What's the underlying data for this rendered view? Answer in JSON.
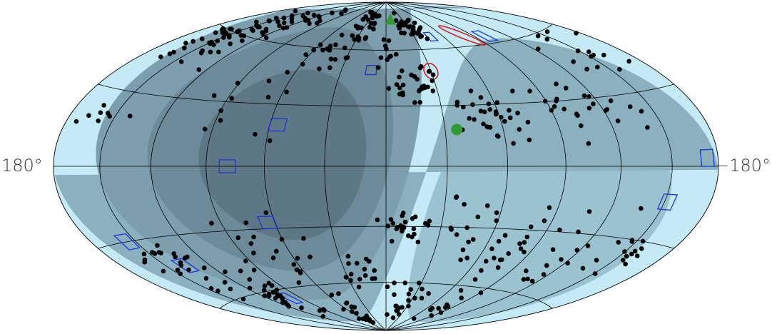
{
  "map": {
    "projection": "hammer-aitoff",
    "coordinate_system": "galactic",
    "lon_label_left": "180°",
    "lon_label_right": "−180°",
    "colors": {
      "background_light": "#c4eaf6",
      "background_dark": "#5e7784",
      "graticule": "#000000",
      "points": "#000000",
      "markers_green": "#2f9a2f",
      "contours_red": "#d42020",
      "regions_blue": "#1a35e0"
    },
    "shading_layers": [
      {
        "lon": 118,
        "lat": 25,
        "radius": 150,
        "color": "#b6dde9"
      },
      {
        "lon": 105,
        "lat": 22,
        "radius": 135,
        "color": "#a9d1de"
      },
      {
        "lon": 92,
        "lat": 20,
        "radius": 118,
        "color": "#9bc2cf"
      },
      {
        "lon": 80,
        "lat": 18,
        "radius": 100,
        "color": "#8cb1be"
      },
      {
        "lon": 70,
        "lat": 14,
        "radius": 82,
        "color": "#7c9ead"
      },
      {
        "lon": 60,
        "lat": 10,
        "radius": 62,
        "color": "#6c8a98"
      },
      {
        "lon": 52,
        "lat": 6,
        "radius": 42,
        "color": "#5e7784"
      }
    ],
    "green_markers": [
      {
        "shape": "triangle",
        "lon": -8,
        "lat": 78
      },
      {
        "shape": "circle",
        "lon": -36,
        "lat": 18
      }
    ],
    "red_contours": [
      {
        "lon": -30,
        "lat": 48,
        "width_deg": 4,
        "height_deg": 10,
        "angle": -35
      },
      {
        "lon": -80,
        "lat": 66,
        "width_deg": 16,
        "height_deg": 3,
        "angle": 22
      }
    ],
    "blue_regions": [
      {
        "lon": 10,
        "lat": 49,
        "size": 5
      },
      {
        "lon": -47,
        "lat": 67,
        "size": 5
      },
      {
        "lon": -100,
        "lat": 64,
        "size": 6
      },
      {
        "lon": 56,
        "lat": 20,
        "size": 6
      },
      {
        "lon": 79,
        "lat": 0,
        "size": 6
      },
      {
        "lon": 64,
        "lat": -27,
        "size": 6
      },
      {
        "lon": 156,
        "lat": -30,
        "size": 6
      },
      {
        "lon": 137,
        "lat": -43,
        "size": 6
      },
      {
        "lon": 101,
        "lat": -65,
        "size": 6
      },
      {
        "lon": -173,
        "lat": 3,
        "size": 6
      },
      {
        "lon": -152,
        "lat": -14,
        "size": 6
      }
    ],
    "point_clusters": [
      {
        "lon": 150,
        "lat": 58,
        "spread": 20,
        "count": 55
      },
      {
        "lon": 115,
        "lat": 72,
        "spread": 14,
        "count": 20
      },
      {
        "lon": 30,
        "lat": 76,
        "spread": 12,
        "count": 28
      },
      {
        "lon": -30,
        "lat": 72,
        "spread": 12,
        "count": 32
      },
      {
        "lon": -20,
        "lat": 40,
        "spread": 12,
        "count": 28
      },
      {
        "lon": -55,
        "lat": 25,
        "spread": 16,
        "count": 32
      },
      {
        "lon": -110,
        "lat": 30,
        "spread": 22,
        "count": 25
      },
      {
        "lon": -150,
        "lat": 45,
        "spread": 18,
        "count": 14
      },
      {
        "lon": 160,
        "lat": 18,
        "spread": 14,
        "count": 8
      },
      {
        "lon": 80,
        "lat": 28,
        "spread": 30,
        "count": 12
      },
      {
        "lon": -10,
        "lat": -30,
        "spread": 10,
        "count": 24
      },
      {
        "lon": -40,
        "lat": -25,
        "spread": 14,
        "count": 12
      },
      {
        "lon": -70,
        "lat": -40,
        "spread": 18,
        "count": 20
      },
      {
        "lon": -110,
        "lat": -35,
        "spread": 22,
        "count": 20
      },
      {
        "lon": -150,
        "lat": -35,
        "spread": 14,
        "count": 14
      },
      {
        "lon": 140,
        "lat": -45,
        "spread": 16,
        "count": 25
      },
      {
        "lon": 110,
        "lat": -62,
        "spread": 16,
        "count": 28
      },
      {
        "lon": 70,
        "lat": -40,
        "spread": 20,
        "count": 20
      },
      {
        "lon": 20,
        "lat": -55,
        "spread": 12,
        "count": 16
      },
      {
        "lon": 50,
        "lat": -75,
        "spread": 12,
        "count": 18
      },
      {
        "lon": -20,
        "lat": -72,
        "spread": 16,
        "count": 22
      },
      {
        "lon": -80,
        "lat": -70,
        "spread": 14,
        "count": 12
      },
      {
        "lon": 45,
        "lat": 60,
        "spread": 16,
        "count": 18
      },
      {
        "lon": 0,
        "lat": 58,
        "spread": 10,
        "count": 10
      }
    ]
  }
}
